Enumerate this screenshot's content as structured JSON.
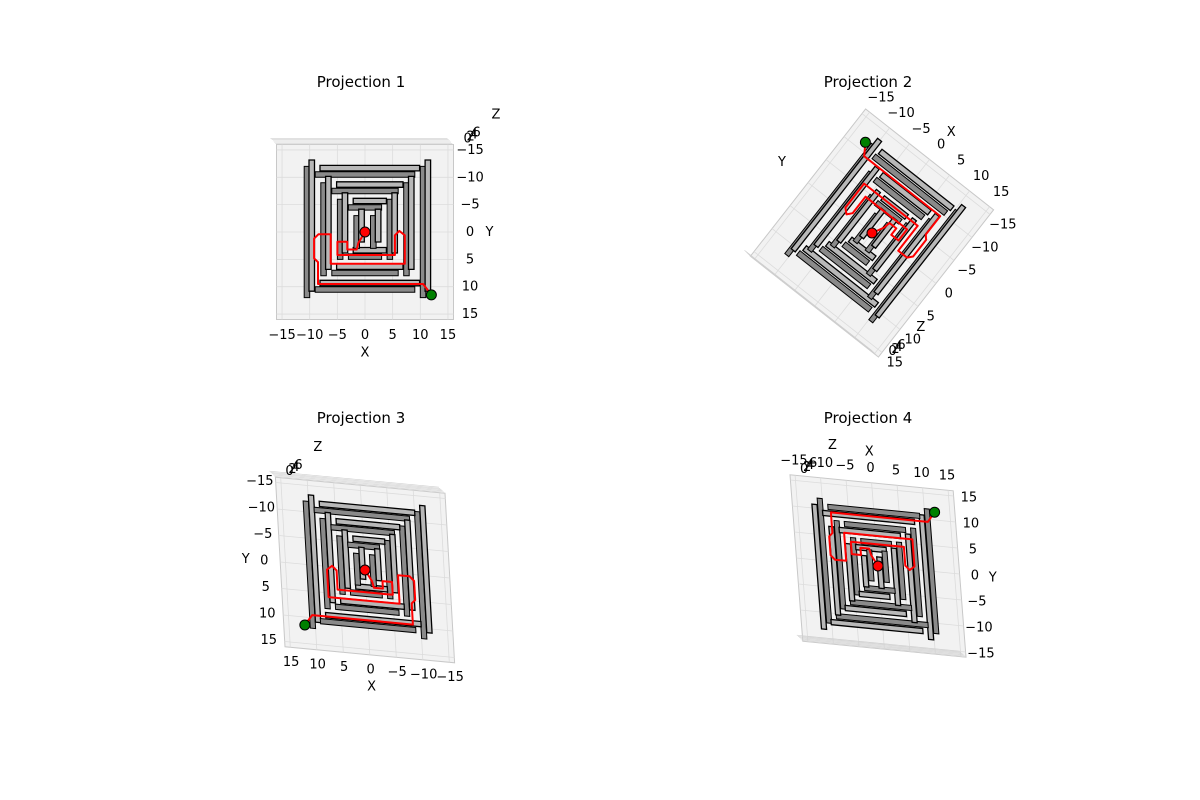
{
  "panels": [
    {
      "title": "Projection 1",
      "x_label": "X",
      "y_label": "Y",
      "z_label": "Z",
      "x_ticks": [
        "−15",
        "−10",
        "−5",
        "0",
        "5",
        "10",
        "15"
      ],
      "y_ticks": [
        "−15",
        "−10",
        "−5",
        "0",
        "5",
        "10",
        "15"
      ],
      "z_ticks": [
        "0",
        "2",
        "4",
        "6"
      ]
    },
    {
      "title": "Projection 2",
      "x_label": "X",
      "y_label": "Y",
      "z_label": "Z",
      "x_ticks": [
        "15",
        "10",
        "5",
        "0",
        "−5",
        "−10",
        "−15"
      ],
      "y_ticks": [
        "15",
        "10",
        "5",
        "0",
        "−5",
        "−10",
        "−15"
      ],
      "z_ticks": [
        "0",
        "2",
        "4",
        "6"
      ]
    },
    {
      "title": "Projection 3",
      "x_label": "X",
      "y_label": "Y",
      "z_label": "Z",
      "x_ticks": [
        "15",
        "10",
        "5",
        "0",
        "−5",
        "−10",
        "−15"
      ],
      "y_ticks": [
        "−15",
        "−10",
        "−5",
        "0",
        "5",
        "10",
        "15"
      ],
      "z_ticks": [
        "0",
        "2",
        "4",
        "6"
      ]
    },
    {
      "title": "Projection 4",
      "x_label": "X",
      "y_label": "Y",
      "z_label": "Z",
      "x_ticks": [
        "−15",
        "−10",
        "−5",
        "0",
        "5",
        "10",
        "15"
      ],
      "y_ticks": [
        "15",
        "10",
        "5",
        "0",
        "−5",
        "−10",
        "−15"
      ],
      "z_ticks": [
        "0",
        "2",
        "4",
        "6"
      ]
    }
  ],
  "colors": {
    "wall_fill": "#b8b8b8",
    "wall_edge": "#000000",
    "path": "#ff0000",
    "start_marker": "#008000",
    "goal_marker": "#ff0000",
    "pane": "#f2f2f2",
    "grid": "#dcdcdc"
  },
  "maze": {
    "walls": [
      [
        -11,
        -12,
        -10,
        12
      ],
      [
        10,
        -12,
        11,
        12
      ],
      [
        -9,
        -11,
        9,
        -10
      ],
      [
        -9,
        10,
        9,
        11
      ],
      [
        -8,
        -9,
        -7,
        8
      ],
      [
        7,
        -9,
        8,
        8
      ],
      [
        -6,
        -8,
        6,
        -7
      ],
      [
        -6,
        7,
        6,
        8
      ],
      [
        -5,
        -6,
        -4,
        5
      ],
      [
        4,
        -6,
        5,
        5
      ],
      [
        -3,
        -5,
        3,
        -4
      ],
      [
        -3,
        4,
        3,
        5
      ],
      [
        -2,
        -3,
        -1,
        3
      ],
      [
        1,
        -3,
        2,
        3
      ]
    ],
    "path": [
      [
        12,
        11.5
      ],
      [
        10.5,
        9.5
      ],
      [
        -8.5,
        9.5
      ],
      [
        -8.5,
        5.5
      ],
      [
        -9.2,
        4.8
      ],
      [
        -9.2,
        1.2
      ],
      [
        -8.4,
        0.4
      ],
      [
        -6.2,
        0.4
      ],
      [
        -6.2,
        5.8
      ],
      [
        7.2,
        5.8
      ],
      [
        7.2,
        0.6
      ],
      [
        6.2,
        -0.2
      ],
      [
        5.4,
        0.6
      ],
      [
        5.4,
        4.2
      ],
      [
        -5,
        4.2
      ],
      [
        -5,
        1.8
      ],
      [
        -3.2,
        1.8
      ],
      [
        -3.2,
        3.2
      ],
      [
        -1.5,
        3.2
      ],
      [
        -1.2,
        2
      ],
      [
        0,
        0
      ]
    ],
    "start": [
      12,
      11.5
    ],
    "goal": [
      0,
      0
    ]
  }
}
